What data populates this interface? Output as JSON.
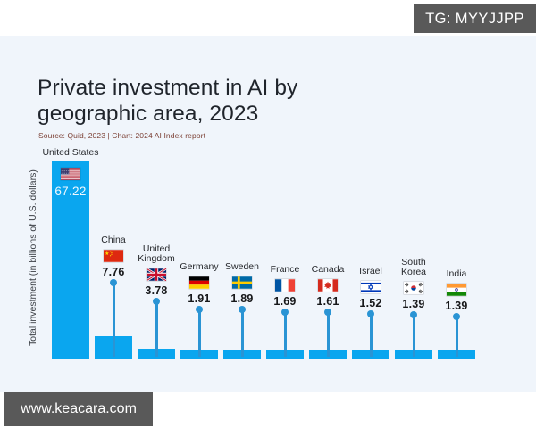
{
  "badges": {
    "top_right": "TG: MYYJJPP",
    "bottom_left": "www.keacara.com"
  },
  "header": {
    "title": "Private investment in AI by geographic area, 2023",
    "source": "Source: Quid, 2023 | Chart: 2024 AI Index report"
  },
  "chart_data": {
    "type": "bar",
    "title": "Private investment in AI by geographic area, 2023",
    "ylabel": "Total investment (in billions of U.S. dollars)",
    "xlabel": "",
    "categories": [
      "United States",
      "China",
      "United Kingdom",
      "Germany",
      "Sweden",
      "France",
      "Canada",
      "Israel",
      "South Korea",
      "India"
    ],
    "values": [
      67.22,
      7.76,
      3.78,
      1.91,
      1.89,
      1.69,
      1.61,
      1.52,
      1.39,
      1.39
    ],
    "flags": [
      "us",
      "china",
      "uk",
      "germany",
      "sweden",
      "france",
      "canada",
      "israel",
      "south-korea",
      "india"
    ],
    "ylim": [
      0,
      70
    ],
    "grid": false,
    "legend": "none",
    "bar_color": "#0aa6ef",
    "leader_color": "#2a94d4",
    "background_color": "#f0f5fb",
    "value_label_note": "values shown above bars with country flags; United States value shown in white inside bar"
  }
}
